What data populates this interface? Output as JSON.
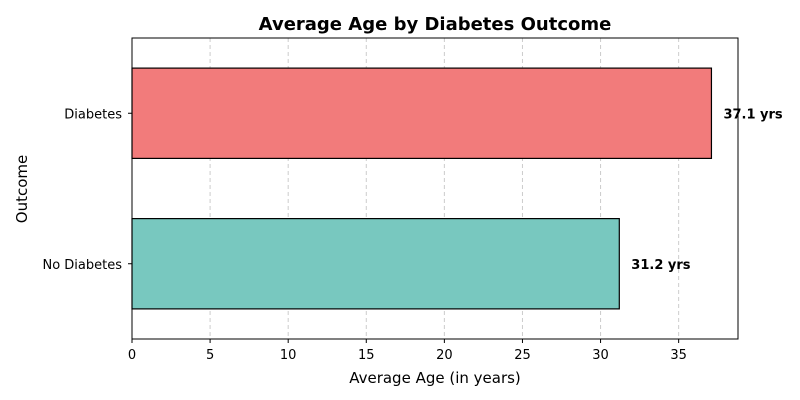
{
  "chart_data": {
    "type": "bar",
    "orientation": "horizontal",
    "title": "Average Age by Diabetes Outcome",
    "xlabel": "Average Age (in years)",
    "ylabel": "Outcome",
    "categories": [
      "Diabetes",
      "No Diabetes"
    ],
    "values": [
      37.1,
      31.2
    ],
    "data_labels": [
      "37.1 yrs",
      "31.2 yrs"
    ],
    "colors": [
      "#f27b7b",
      "#78c8bf"
    ],
    "xlim": [
      0,
      38.8
    ],
    "xticks": [
      0,
      5,
      10,
      15,
      20,
      25,
      30,
      35
    ],
    "grid": "x-dashed",
    "legend": "none"
  }
}
